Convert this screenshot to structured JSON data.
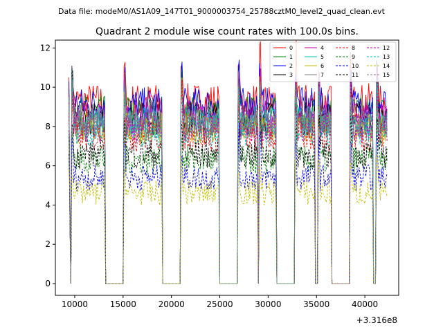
{
  "header": {
    "file_label": "Data file: modeM0/AS1A09_147T01_9000003754_25788cztM0_level2_quad_clean.evt"
  },
  "chart_data": {
    "type": "line",
    "title": "Quadrant 2 module wise count rates with 100.0s bins.",
    "xlabel": "",
    "ylabel": "",
    "x_offset_label": "+3.316e8",
    "xlim": [
      8000,
      43500
    ],
    "ylim": [
      -0.6,
      12.4
    ],
    "xticks": [
      10000,
      15000,
      20000,
      25000,
      30000,
      35000,
      40000
    ],
    "yticks": [
      0,
      2,
      4,
      6,
      8,
      10,
      12
    ],
    "legend_position": "top-right",
    "bin_width_s": 100,
    "segments": [
      [
        9700,
        13100
      ],
      [
        15100,
        19000
      ],
      [
        21000,
        24900
      ],
      [
        26900,
        28900
      ],
      [
        29100,
        30800
      ],
      [
        32800,
        34800
      ],
      [
        35200,
        36500
      ],
      [
        38500,
        40800
      ],
      [
        41200,
        42300
      ]
    ],
    "series": [
      {
        "name": "0",
        "color": "#ff0000",
        "dash": "solid",
        "level": 9.3
      },
      {
        "name": "1",
        "color": "#008000",
        "dash": "solid",
        "level": 8.7
      },
      {
        "name": "2",
        "color": "#0000ff",
        "dash": "solid",
        "level": 9.1
      },
      {
        "name": "3",
        "color": "#000000",
        "dash": "solid",
        "level": 8.4
      },
      {
        "name": "4",
        "color": "#bf00bf",
        "dash": "solid",
        "level": 8.5
      },
      {
        "name": "5",
        "color": "#00bfbf",
        "dash": "solid",
        "level": 8.2
      },
      {
        "name": "6",
        "color": "#bfbf00",
        "dash": "solid",
        "level": 7.9
      },
      {
        "name": "7",
        "color": "#808080",
        "dash": "solid",
        "level": 8.1
      },
      {
        "name": "8",
        "color": "#ff0000",
        "dash": "dashed",
        "level": 7.5
      },
      {
        "name": "9",
        "color": "#008000",
        "dash": "dashed",
        "level": 6.3
      },
      {
        "name": "10",
        "color": "#0000ff",
        "dash": "dashed",
        "level": 5.4
      },
      {
        "name": "11",
        "color": "#000000",
        "dash": "dashed",
        "level": 6.6
      },
      {
        "name": "12",
        "color": "#bf00bf",
        "dash": "dashed",
        "level": 8.0
      },
      {
        "name": "13",
        "color": "#00bfbf",
        "dash": "dashed",
        "level": 7.8
      },
      {
        "name": "14",
        "color": "#bfbf00",
        "dash": "dashed",
        "level": 4.6
      },
      {
        "name": "15",
        "color": "#808080",
        "dash": "dashed",
        "level": 8.3
      }
    ]
  }
}
